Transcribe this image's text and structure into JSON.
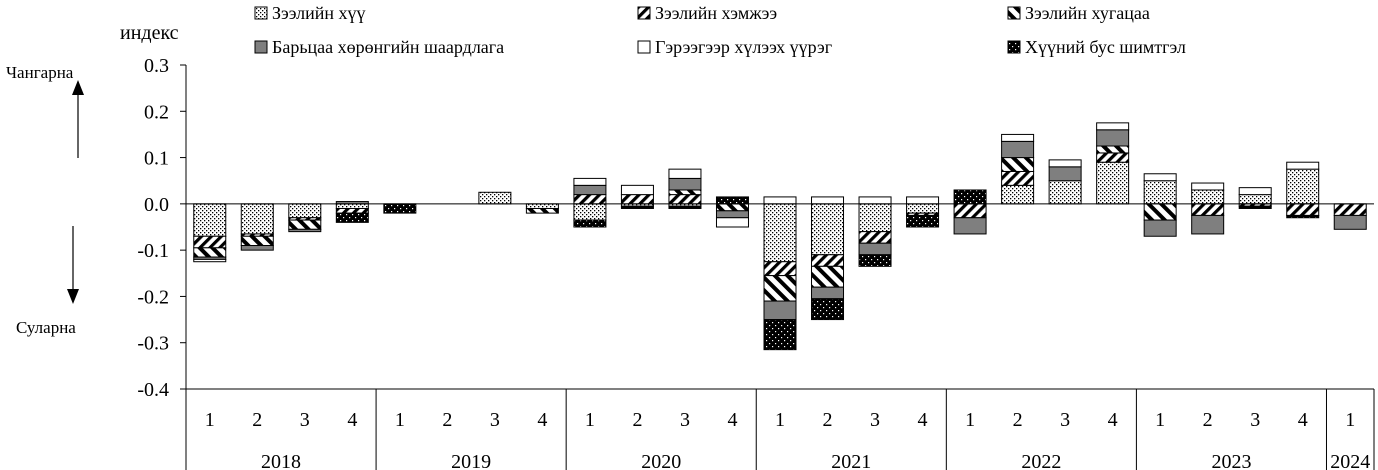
{
  "chart_data": {
    "type": "bar",
    "stacked": true,
    "title": "",
    "ylabel": "индекс",
    "xlabel": "",
    "ylim": [
      -0.4,
      0.3
    ],
    "yticks": [
      0.3,
      0.2,
      0.1,
      0.0,
      -0.1,
      -0.2,
      -0.3,
      -0.4
    ],
    "grid": false,
    "legend_position": "top",
    "up_label": "Чангарна",
    "down_label": "Суларна",
    "categories": [
      "1",
      "2",
      "3",
      "4",
      "1",
      "2",
      "3",
      "4",
      "1",
      "2",
      "3",
      "4",
      "1",
      "2",
      "3",
      "4",
      "1",
      "2",
      "3",
      "4",
      "1",
      "2",
      "3",
      "4",
      "1"
    ],
    "years": [
      {
        "label": "2018",
        "quarters": 4
      },
      {
        "label": "2019",
        "quarters": 4
      },
      {
        "label": "2020",
        "quarters": 4
      },
      {
        "label": "2021",
        "quarters": 4
      },
      {
        "label": "2022",
        "quarters": 4
      },
      {
        "label": "2023",
        "quarters": 4
      },
      {
        "label": "2024",
        "quarters": 1
      }
    ],
    "series": [
      {
        "name": "Зээлийн хүү",
        "pattern": "dots",
        "values": [
          -0.07,
          -0.065,
          -0.03,
          -0.01,
          0.0,
          0.0,
          0.025,
          -0.01,
          -0.035,
          -0.005,
          -0.005,
          0.0,
          -0.125,
          -0.11,
          -0.06,
          -0.02,
          0.0,
          0.04,
          0.05,
          0.09,
          0.05,
          0.03,
          0.02,
          0.075,
          0.0
        ]
      },
      {
        "name": "Зээлийн хэмжээ",
        "pattern": "diag-left",
        "values": [
          -0.025,
          -0.005,
          -0.005,
          -0.01,
          0.0,
          0.0,
          0.0,
          0.0,
          0.02,
          0.02,
          0.02,
          0.0,
          -0.03,
          -0.025,
          -0.025,
          -0.005,
          -0.03,
          0.03,
          0.0,
          0.02,
          0.0,
          -0.025,
          -0.005,
          -0.025,
          -0.025
        ]
      },
      {
        "name": "Зээлийн хугацаа",
        "pattern": "diag-right",
        "values": [
          -0.02,
          -0.02,
          -0.02,
          0.0,
          0.0,
          0.0,
          0.0,
          -0.01,
          0.0,
          0.0,
          0.01,
          -0.015,
          -0.055,
          -0.045,
          0.0,
          0.0,
          0.0,
          0.03,
          0.0,
          0.015,
          -0.035,
          0.0,
          0.0,
          0.0,
          0.0
        ]
      },
      {
        "name": "Барьцаа хөрөнгийн шаардлага",
        "pattern": "gray",
        "values": [
          -0.005,
          -0.01,
          -0.005,
          0.005,
          0.0,
          0.0,
          0.0,
          0.0,
          0.02,
          0.0,
          0.025,
          -0.015,
          -0.04,
          -0.025,
          -0.025,
          0.0,
          -0.035,
          0.035,
          0.03,
          0.035,
          -0.035,
          -0.04,
          0.0,
          0.0,
          -0.03
        ]
      },
      {
        "name": "Гэрээгээр хүлээх үүрэг",
        "pattern": "white",
        "values": [
          -0.005,
          0.0,
          0.0,
          0.0,
          0.0,
          0.0,
          0.0,
          0.0,
          0.015,
          0.02,
          0.02,
          -0.02,
          0.015,
          0.015,
          0.015,
          0.015,
          0.0,
          0.015,
          0.015,
          0.015,
          0.015,
          0.015,
          0.015,
          0.015,
          0.0
        ]
      },
      {
        "name": "Хүүний бус шимтгэл",
        "pattern": "black",
        "values": [
          0.0,
          0.0,
          0.0,
          -0.02,
          -0.02,
          0.0,
          0.0,
          0.0,
          -0.015,
          -0.005,
          -0.005,
          0.015,
          -0.065,
          -0.045,
          -0.025,
          -0.025,
          0.03,
          0.0,
          0.0,
          0.0,
          0.0,
          0.0,
          -0.005,
          -0.005,
          0.0
        ]
      }
    ]
  }
}
